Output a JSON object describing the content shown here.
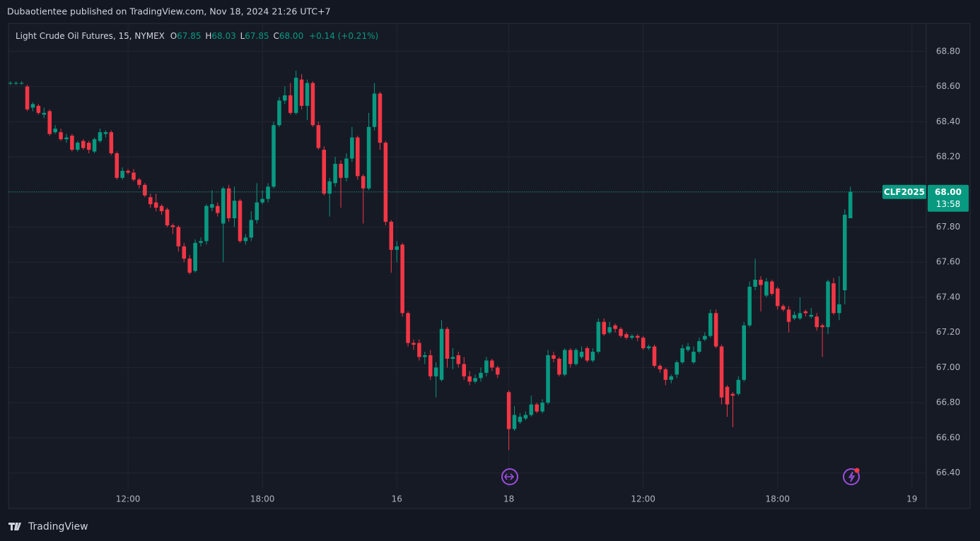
{
  "header": {
    "published": "Dubaotientee published on TradingView.com, Nov 18, 2024 21:26 UTC+7"
  },
  "footer": {
    "brand": "TradingView"
  },
  "chart_data": {
    "type": "candlestick",
    "legend": {
      "symbol": "Light Crude Oil Futures, 15, NYMEX",
      "open_label": "O",
      "open": "67.85",
      "high_label": "H",
      "high": "68.03",
      "low_label": "L",
      "low": "67.85",
      "close_label": "C",
      "close": "68.00",
      "change": "+0.14 (+0.21%)"
    },
    "up_color": "#089981",
    "down_color": "#f23645",
    "grid": true,
    "price_line": {
      "value": 68,
      "label": "68.00",
      "symbol": "CLF2025",
      "countdown": "13:58"
    },
    "xlim": [
      -0.35,
      163.55
    ],
    "xticks": [
      {
        "value": 21,
        "label": "12:00"
      },
      {
        "value": 45,
        "label": "18:00"
      },
      {
        "value": 69,
        "label": "16"
      },
      {
        "value": 89,
        "label": "18"
      },
      {
        "value": 113,
        "label": "12:00"
      },
      {
        "value": 137,
        "label": "18:00"
      },
      {
        "value": 161,
        "label": "19"
      }
    ],
    "ylim": [
      66.31,
      68.96
    ],
    "yticks": [
      {
        "value": 66.4,
        "label": "66.40"
      },
      {
        "value": 66.6,
        "label": "66.60"
      },
      {
        "value": 66.8,
        "label": "66.80"
      },
      {
        "value": 67,
        "label": "67.00"
      },
      {
        "value": 67.2,
        "label": "67.20"
      },
      {
        "value": 67.4,
        "label": "67.40"
      },
      {
        "value": 67.6,
        "label": "67.60"
      },
      {
        "value": 67.8,
        "label": "67.80"
      },
      {
        "value": 68,
        "label": "68.00"
      },
      {
        "value": 68.2,
        "label": "68.20"
      },
      {
        "value": 68.4,
        "label": "68.40"
      },
      {
        "value": 68.6,
        "label": "68.60"
      },
      {
        "value": 68.8,
        "label": "68.80"
      }
    ],
    "open": [
      68.62,
      68.62,
      68.62,
      68.6,
      68.48,
      68.49,
      68.44,
      68.46,
      68.34,
      68.34,
      68.3,
      68.32,
      68.24,
      68.29,
      68.28,
      68.23,
      68.29,
      68.33,
      68.34,
      68.22,
      68.08,
      68.12,
      68.11,
      68.07,
      68.04,
      67.97,
      67.94,
      67.92,
      67.9,
      67.81,
      67.8,
      67.69,
      67.62,
      67.55,
      67.71,
      67.72,
      67.91,
      67.92,
      67.82,
      68.02,
      67.85,
      67.95,
      67.72,
      67.74,
      67.84,
      67.94,
      67.96,
      68.03,
      68.38,
      68.52,
      68.55,
      68.45,
      68.64,
      68.49,
      68.62,
      68.38,
      68.24,
      67.99,
      68.05,
      68.16,
      68.08,
      68.19,
      68.31,
      68.09,
      68.02,
      68.37,
      68.56,
      68.28,
      67.83,
      67.67,
      67.7,
      67.31,
      67.14,
      67.14,
      67.06,
      67.07,
      66.95,
      66.93,
      67.22,
      67.05,
      67.07,
      67.02,
      66.95,
      66.92,
      66.94,
      66.97,
      67.04,
      67.0,
      null,
      66.86,
      66.65,
      66.69,
      66.71,
      66.73,
      66.79,
      66.75,
      66.8,
      67.07,
      67.05,
      66.96,
      67.1,
      67.02,
      67.06,
      67.11,
      67.04,
      67.09,
      67.26,
      67.2,
      67.24,
      67.22,
      67.19,
      67.17,
      67.18,
      67.17,
      67.11,
      67.12,
      67.01,
      66.99,
      66.93,
      66.96,
      67.03,
      67.1,
      67.03,
      67.09,
      67.16,
      67.18,
      67.31,
      67.12,
      66.89,
      66.85,
      66.85,
      66.93,
      67.24,
      67.46,
      67.5,
      67.41,
      67.49,
      67.45,
      67.35,
      67.33,
      67.28,
      67.28,
      67.32,
      67.29,
      67.29,
      67.24,
      67.23,
      67.48,
      67.31,
      67.44,
      67.85
    ],
    "high": [
      68.63,
      68.63,
      68.63,
      68.61,
      68.51,
      68.5,
      68.48,
      68.47,
      68.38,
      68.36,
      68.33,
      68.33,
      68.29,
      68.3,
      68.29,
      68.31,
      68.36,
      68.35,
      68.35,
      68.23,
      68.14,
      68.13,
      68.13,
      68.08,
      68.05,
      67.99,
      67.99,
      67.93,
      67.91,
      67.82,
      67.81,
      67.71,
      67.64,
      67.73,
      67.74,
      67.93,
      68.01,
      67.94,
      68.03,
      68.04,
      68.03,
      67.96,
      67.76,
      67.89,
      68.05,
      68.01,
      68.05,
      68.4,
      68.54,
      68.6,
      68.62,
      68.69,
      68.67,
      68.64,
      68.63,
      68.4,
      68.26,
      68.08,
      68.2,
      68.18,
      68.22,
      68.37,
      68.32,
      68.1,
      68.45,
      68.62,
      68.57,
      68.29,
      67.84,
      67.72,
      67.71,
      67.32,
      67.16,
      67.16,
      67.09,
      67.1,
      67.03,
      67.27,
      67.23,
      67.11,
      67.09,
      67.06,
      66.98,
      66.96,
      67.0,
      67.06,
      67.05,
      67.01,
      null,
      66.87,
      66.78,
      66.74,
      66.75,
      66.84,
      66.8,
      66.82,
      67.1,
      67.09,
      67.06,
      67.11,
      67.11,
      67.11,
      67.12,
      67.12,
      67.11,
      67.28,
      67.28,
      67.26,
      67.25,
      67.23,
      67.2,
      67.19,
      67.19,
      67.18,
      67.13,
      67.13,
      67.02,
      67.0,
      66.96,
      67.04,
      67.13,
      67.14,
      67.12,
      67.17,
      67.2,
      67.33,
      67.33,
      67.13,
      66.9,
      66.86,
      66.95,
      67.26,
      67.49,
      67.62,
      67.52,
      67.51,
      67.5,
      67.46,
      67.36,
      67.35,
      67.32,
      67.4,
      67.33,
      67.34,
      67.31,
      67.25,
      67.5,
      67.51,
      67.52,
      67.9,
      68.03
    ],
    "low": [
      68.61,
      68.61,
      68.61,
      68.46,
      68.46,
      68.44,
      68.42,
      68.32,
      68.33,
      68.29,
      68.28,
      68.23,
      68.23,
      68.24,
      68.22,
      68.22,
      68.28,
      68.31,
      68.21,
      68.07,
      68.07,
      68.1,
      68.06,
      68.02,
      67.97,
      67.91,
      67.89,
      67.87,
      67.8,
      67.76,
      67.66,
      67.6,
      67.53,
      67.54,
      67.69,
      67.7,
      67.89,
      67.86,
      67.6,
      67.83,
      67.8,
      67.71,
      67.7,
      67.72,
      67.82,
      67.93,
      67.94,
      68.02,
      68.37,
      68.5,
      68.44,
      68.44,
      68.47,
      68.41,
      68.37,
      68.24,
      67.98,
      67.86,
      68.03,
      67.91,
      68.06,
      68.17,
      68.07,
      67.82,
      68.01,
      68.35,
      68.24,
      67.81,
      67.54,
      67.6,
      67.29,
      67.12,
      67.1,
      67.04,
      67.02,
      66.93,
      66.83,
      66.92,
      67.0,
      66.99,
      67.0,
      66.93,
      66.9,
      66.91,
      66.92,
      66.95,
      66.98,
      66.94,
      null,
      66.53,
      66.64,
      66.68,
      66.7,
      66.72,
      66.74,
      66.74,
      66.79,
      67.03,
      66.95,
      66.95,
      67.0,
      67.01,
      67.05,
      67.03,
      67.03,
      67.08,
      67.18,
      67.19,
      67.2,
      67.17,
      67.16,
      67.16,
      67.15,
      67.1,
      67.1,
      67.0,
      66.97,
      66.9,
      66.91,
      66.94,
      67.02,
      67.09,
      67.02,
      67.08,
      67.15,
      67.17,
      67.11,
      66.79,
      66.72,
      66.66,
      66.84,
      66.92,
      67.23,
      67.44,
      67.32,
      67.4,
      67.41,
      67.33,
      67.32,
      67.2,
      67.27,
      67.27,
      67.29,
      67.28,
      67.21,
      67.06,
      67.19,
      67.3,
      67.27,
      67.36,
      67.85
    ],
    "close": [
      68.62,
      68.62,
      68.62,
      68.47,
      68.5,
      68.45,
      68.45,
      68.33,
      68.36,
      68.3,
      68.31,
      68.24,
      68.28,
      68.25,
      68.24,
      68.3,
      68.34,
      68.34,
      68.22,
      68.08,
      68.12,
      68.11,
      68.07,
      68.04,
      67.98,
      67.93,
      67.91,
      67.89,
      67.81,
      67.8,
      67.69,
      67.62,
      67.54,
      67.71,
      67.72,
      67.92,
      67.93,
      67.88,
      68.02,
      67.85,
      67.95,
      67.72,
      67.74,
      67.84,
      67.94,
      67.96,
      68.03,
      68.38,
      68.52,
      68.55,
      68.45,
      68.65,
      68.49,
      68.62,
      68.38,
      68.25,
      67.99,
      68.06,
      68.16,
      68.08,
      68.19,
      68.31,
      68.09,
      68.02,
      68.37,
      68.56,
      68.28,
      67.83,
      67.67,
      67.69,
      67.31,
      67.14,
      67.13,
      67.06,
      67.07,
      66.95,
      67.0,
      67.22,
      67.05,
      67.06,
      67.02,
      66.95,
      66.92,
      66.94,
      66.97,
      67.04,
      67.0,
      66.96,
      null,
      66.65,
      66.73,
      66.72,
      66.73,
      66.79,
      66.75,
      66.8,
      67.07,
      67.05,
      66.96,
      67.1,
      67.02,
      67.1,
      67.09,
      67.04,
      67.09,
      67.26,
      67.19,
      67.23,
      67.22,
      67.18,
      67.17,
      67.18,
      67.17,
      67.11,
      67.12,
      67.01,
      66.99,
      66.93,
      66.95,
      67.03,
      67.11,
      67.12,
      67.09,
      67.15,
      67.18,
      67.31,
      67.12,
      66.83,
      66.79,
      66.84,
      66.93,
      67.24,
      67.46,
      67.5,
      67.47,
      67.49,
      67.42,
      67.35,
      67.33,
      67.26,
      67.3,
      67.31,
      67.31,
      67.3,
      67.23,
      67.23,
      67.49,
      67.31,
      67.36,
      67.87,
      68.0
    ]
  }
}
